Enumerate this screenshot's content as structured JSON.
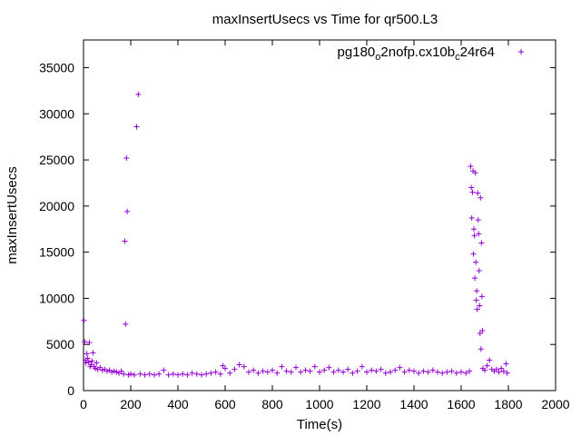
{
  "chart_data": {
    "type": "scatter",
    "title": "maxInsertUsecs vs Time for qr500.L3",
    "xlabel": "Time(s)",
    "ylabel": "maxInsertUsecs",
    "xlim": [
      0,
      2000
    ],
    "ylim": [
      0,
      38000
    ],
    "xticks": [
      0,
      200,
      400,
      600,
      800,
      1000,
      1200,
      1400,
      1600,
      1800,
      2000
    ],
    "yticks": [
      0,
      5000,
      10000,
      15000,
      20000,
      25000,
      30000,
      35000
    ],
    "grid": false,
    "legend_position": "top-right",
    "color": "#9400d3",
    "series": [
      {
        "name": "pg180_o2nofp.cx10b_c24r64",
        "points": [
          [
            2,
            7600
          ],
          [
            5,
            5300
          ],
          [
            8,
            3300
          ],
          [
            10,
            3000
          ],
          [
            14,
            4000
          ],
          [
            18,
            3500
          ],
          [
            22,
            3100
          ],
          [
            25,
            5200
          ],
          [
            28,
            2600
          ],
          [
            32,
            2800
          ],
          [
            36,
            3200
          ],
          [
            40,
            4100
          ],
          [
            45,
            2600
          ],
          [
            50,
            2400
          ],
          [
            55,
            3000
          ],
          [
            60,
            2300
          ],
          [
            70,
            2500
          ],
          [
            80,
            2200
          ],
          [
            90,
            2300
          ],
          [
            100,
            2100
          ],
          [
            110,
            2200
          ],
          [
            120,
            2000
          ],
          [
            130,
            2100
          ],
          [
            140,
            2000
          ],
          [
            150,
            1900
          ],
          [
            160,
            2100
          ],
          [
            170,
            1800
          ],
          [
            175,
            16200
          ],
          [
            178,
            7200
          ],
          [
            182,
            25200
          ],
          [
            185,
            19400
          ],
          [
            190,
            1700
          ],
          [
            200,
            1800
          ],
          [
            215,
            1700
          ],
          [
            225,
            28600
          ],
          [
            232,
            32100
          ],
          [
            240,
            1800
          ],
          [
            260,
            1700
          ],
          [
            280,
            1800
          ],
          [
            300,
            1700
          ],
          [
            320,
            1800
          ],
          [
            340,
            2200
          ],
          [
            360,
            1700
          ],
          [
            380,
            1800
          ],
          [
            400,
            1700
          ],
          [
            420,
            1800
          ],
          [
            440,
            1700
          ],
          [
            460,
            1900
          ],
          [
            480,
            1800
          ],
          [
            500,
            1700
          ],
          [
            520,
            1800
          ],
          [
            540,
            1900
          ],
          [
            560,
            2000
          ],
          [
            580,
            1800
          ],
          [
            590,
            2700
          ],
          [
            600,
            2400
          ],
          [
            620,
            1900
          ],
          [
            640,
            2300
          ],
          [
            660,
            2800
          ],
          [
            680,
            2600
          ],
          [
            700,
            2000
          ],
          [
            720,
            2200
          ],
          [
            740,
            1900
          ],
          [
            760,
            2100
          ],
          [
            780,
            2000
          ],
          [
            800,
            2200
          ],
          [
            820,
            1900
          ],
          [
            840,
            2600
          ],
          [
            860,
            2100
          ],
          [
            880,
            2000
          ],
          [
            900,
            2500
          ],
          [
            920,
            2000
          ],
          [
            940,
            2200
          ],
          [
            960,
            2100
          ],
          [
            980,
            2600
          ],
          [
            1000,
            2000
          ],
          [
            1020,
            2200
          ],
          [
            1040,
            2500
          ],
          [
            1060,
            2000
          ],
          [
            1080,
            2200
          ],
          [
            1100,
            2000
          ],
          [
            1120,
            2300
          ],
          [
            1140,
            1900
          ],
          [
            1160,
            2100
          ],
          [
            1180,
            2600
          ],
          [
            1200,
            2000
          ],
          [
            1220,
            2200
          ],
          [
            1240,
            2100
          ],
          [
            1260,
            2300
          ],
          [
            1280,
            1900
          ],
          [
            1300,
            2000
          ],
          [
            1320,
            2200
          ],
          [
            1340,
            2500
          ],
          [
            1360,
            2000
          ],
          [
            1380,
            2200
          ],
          [
            1400,
            2100
          ],
          [
            1420,
            1900
          ],
          [
            1440,
            2100
          ],
          [
            1460,
            2000
          ],
          [
            1480,
            2200
          ],
          [
            1500,
            2000
          ],
          [
            1520,
            1900
          ],
          [
            1540,
            2000
          ],
          [
            1560,
            2100
          ],
          [
            1580,
            1900
          ],
          [
            1600,
            2000
          ],
          [
            1620,
            1900
          ],
          [
            1635,
            2100
          ],
          [
            1640,
            24300
          ],
          [
            1643,
            22000
          ],
          [
            1645,
            18700
          ],
          [
            1648,
            21500
          ],
          [
            1650,
            23800
          ],
          [
            1652,
            14800
          ],
          [
            1654,
            17500
          ],
          [
            1656,
            16800
          ],
          [
            1658,
            12200
          ],
          [
            1660,
            23600
          ],
          [
            1662,
            13900
          ],
          [
            1664,
            9800
          ],
          [
            1666,
            10800
          ],
          [
            1668,
            8800
          ],
          [
            1670,
            21400
          ],
          [
            1672,
            18500
          ],
          [
            1674,
            17000
          ],
          [
            1676,
            13000
          ],
          [
            1678,
            9200
          ],
          [
            1680,
            6200
          ],
          [
            1682,
            20900
          ],
          [
            1684,
            4500
          ],
          [
            1686,
            16000
          ],
          [
            1688,
            10200
          ],
          [
            1690,
            6500
          ],
          [
            1692,
            2400
          ],
          [
            1700,
            2200
          ],
          [
            1710,
            2700
          ],
          [
            1720,
            3300
          ],
          [
            1730,
            2300
          ],
          [
            1740,
            2100
          ],
          [
            1750,
            2300
          ],
          [
            1760,
            2000
          ],
          [
            1770,
            2400
          ],
          [
            1780,
            2100
          ],
          [
            1790,
            2900
          ],
          [
            1795,
            1900
          ]
        ]
      }
    ]
  }
}
